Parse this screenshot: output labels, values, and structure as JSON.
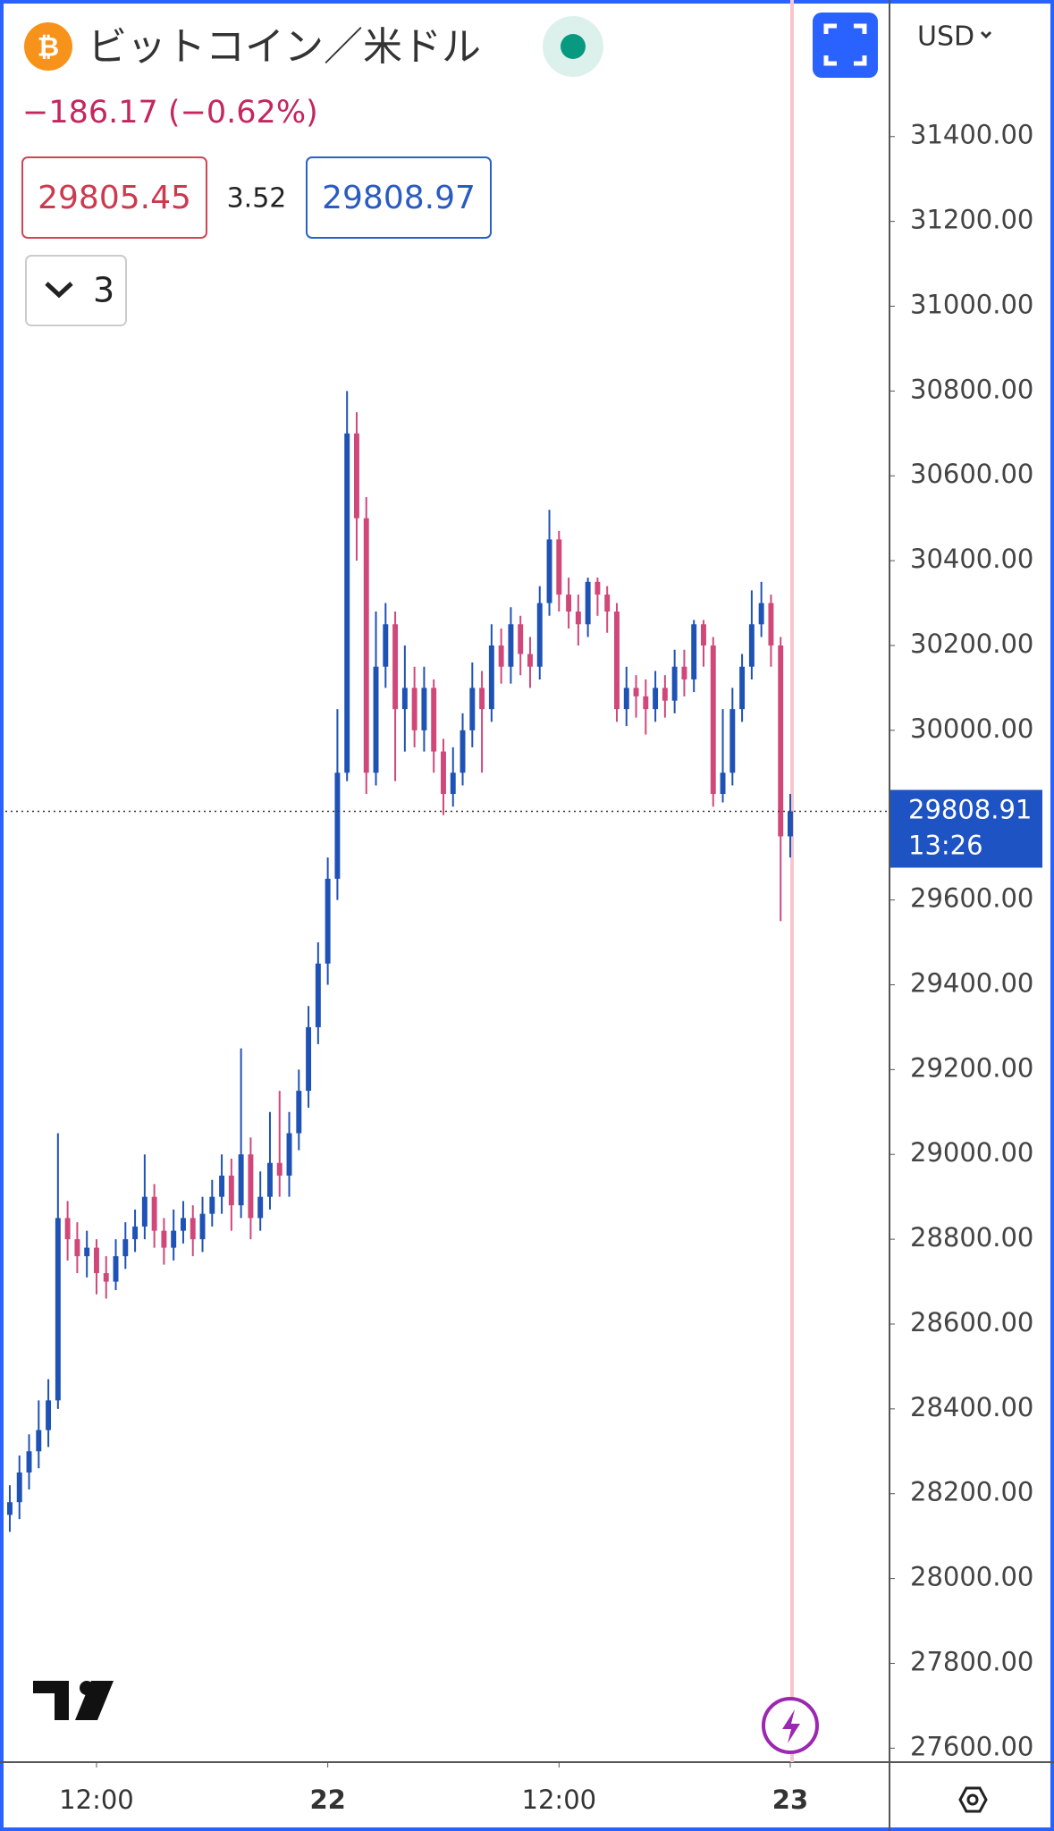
{
  "header": {
    "title": "ビットコイン／米ドル",
    "change": "−186.17 (−0.62%)",
    "bid": 29805.45,
    "spread": 3.52,
    "ask": 29808.97,
    "indicators": "3",
    "currency": "USD"
  },
  "chart_data": {
    "type": "candlestick",
    "x": [
      7.5,
      8,
      8.5,
      9,
      9.5,
      10,
      10.5,
      11,
      11.5,
      12,
      12.5,
      13,
      13.5,
      14,
      14.5,
      15,
      15.5,
      16,
      16.5,
      17,
      17.5,
      18,
      18.5,
      19,
      19.5,
      20,
      20.5,
      21,
      21.5,
      22,
      22.5,
      23,
      23.5,
      24,
      24.5,
      25,
      25.5,
      26,
      26.5,
      27,
      27.5,
      28,
      28.5,
      29,
      29.5,
      30,
      30.5,
      31,
      31.5,
      32,
      32.5,
      33,
      33.5,
      34,
      34.5,
      35,
      35.5,
      36,
      36.5,
      37,
      37.5,
      38,
      38.5,
      39,
      39.5,
      40,
      40.5,
      41,
      41.5,
      42,
      42.5,
      43,
      43.5,
      44,
      44.5,
      45,
      45.5,
      46,
      46.5,
      47,
      47.5,
      48
    ],
    "open": [
      28150,
      28180,
      28250,
      28300,
      28350,
      28420,
      28850,
      28800,
      28760,
      28780,
      28720,
      28700,
      28760,
      28800,
      28830,
      28900,
      28820,
      28780,
      28820,
      28850,
      28800,
      28860,
      28900,
      28950,
      28880,
      29000,
      28850,
      28900,
      28980,
      28950,
      29050,
      29150,
      29300,
      29450,
      29650,
      29900,
      30700,
      30500,
      29900,
      30150,
      30250,
      30050,
      30100,
      30000,
      30100,
      29950,
      29850,
      29900,
      30000,
      30100,
      30050,
      30200,
      30150,
      30250,
      30180,
      30150,
      30300,
      30450,
      30320,
      30280,
      30250,
      30350,
      30320,
      30280,
      30050,
      30100,
      30080,
      30050,
      30100,
      30070,
      30150,
      30120,
      30250,
      30200,
      29850,
      29900,
      30050,
      30150,
      30250,
      30300,
      30200,
      29750
    ],
    "high": [
      28220,
      28290,
      28340,
      28420,
      28470,
      29050,
      28890,
      28840,
      28820,
      28800,
      28760,
      28800,
      28840,
      28870,
      29000,
      28930,
      28850,
      28870,
      28890,
      28880,
      28900,
      28940,
      29000,
      28990,
      29250,
      29040,
      28960,
      29100,
      29150,
      29100,
      29200,
      29350,
      29500,
      29700,
      30050,
      30800,
      30750,
      30550,
      30280,
      30300,
      30280,
      30200,
      30150,
      30150,
      30120,
      29980,
      29960,
      30040,
      30160,
      30140,
      30250,
      30240,
      30290,
      30270,
      30220,
      30340,
      30520,
      30470,
      30360,
      30320,
      30360,
      30360,
      30340,
      30300,
      30150,
      30130,
      30120,
      30140,
      30130,
      30190,
      30190,
      30260,
      30260,
      30220,
      30050,
      30100,
      30180,
      30330,
      30350,
      30320,
      30220,
      29850
    ],
    "low": [
      28110,
      28140,
      28210,
      28260,
      28310,
      28400,
      28750,
      28720,
      28710,
      28670,
      28660,
      28680,
      28730,
      28770,
      28800,
      28780,
      28740,
      28750,
      28790,
      28760,
      28770,
      28830,
      28860,
      28820,
      28850,
      28800,
      28820,
      28870,
      28900,
      28900,
      29010,
      29110,
      29260,
      29400,
      29600,
      29880,
      30400,
      29850,
      29870,
      30100,
      29880,
      29950,
      29960,
      29950,
      29900,
      29800,
      29820,
      29870,
      29960,
      29900,
      30020,
      30110,
      30110,
      30130,
      30100,
      30120,
      30270,
      30280,
      30240,
      30200,
      30220,
      30270,
      30230,
      30020,
      30010,
      30030,
      29990,
      30020,
      30030,
      30040,
      30080,
      30090,
      30150,
      29820,
      29830,
      29870,
      30020,
      30120,
      30220,
      30150,
      29550,
      29700
    ],
    "close": [
      28180,
      28250,
      28300,
      28350,
      28420,
      28850,
      28800,
      28760,
      28780,
      28720,
      28700,
      28760,
      28800,
      28830,
      28900,
      28820,
      28780,
      28820,
      28850,
      28800,
      28860,
      28900,
      28950,
      28880,
      29000,
      28850,
      28900,
      28980,
      28950,
      29050,
      29150,
      29300,
      29450,
      29650,
      29900,
      30700,
      30500,
      29900,
      30150,
      30250,
      30050,
      30100,
      30000,
      30100,
      29950,
      29850,
      29900,
      30000,
      30100,
      30050,
      30200,
      30150,
      30250,
      30180,
      30150,
      30300,
      30450,
      30320,
      30280,
      30250,
      30350,
      30320,
      30280,
      30050,
      30100,
      30080,
      30050,
      30100,
      30070,
      30150,
      30120,
      30250,
      30200,
      29850,
      29900,
      30050,
      30150,
      30250,
      30300,
      30200,
      29750,
      29809
    ],
    "up_color": "#1f52b5",
    "down_color": "#d0487a",
    "xlim": [
      7.27,
      53.15
    ],
    "ylim": [
      27567,
      31722
    ],
    "xticks": [
      {
        "value": 12,
        "label": "12:00"
      },
      {
        "value": 24,
        "label": "22"
      },
      {
        "value": 36,
        "label": "12:00"
      },
      {
        "value": 48,
        "label": "23"
      }
    ],
    "yticks": [
      {
        "value": 27600,
        "label": "27600.00"
      },
      {
        "value": 27800,
        "label": "27800.00"
      },
      {
        "value": 28000,
        "label": "28000.00"
      },
      {
        "value": 28200,
        "label": "28200.00"
      },
      {
        "value": 28400,
        "label": "28400.00"
      },
      {
        "value": 28600,
        "label": "28600.00"
      },
      {
        "value": 28800,
        "label": "28800.00"
      },
      {
        "value": 29000,
        "label": "29000.00"
      },
      {
        "value": 29200,
        "label": "29200.00"
      },
      {
        "value": 29400,
        "label": "29400.00"
      },
      {
        "value": 29600,
        "label": "29600.00"
      },
      {
        "value": 30000,
        "label": "30000.00"
      },
      {
        "value": 30200,
        "label": "30200.00"
      },
      {
        "value": 30400,
        "label": "30400.00"
      },
      {
        "value": 30600,
        "label": "30600.00"
      },
      {
        "value": 30800,
        "label": "30800.00"
      },
      {
        "value": 31000,
        "label": "31000.00"
      },
      {
        "value": 31200,
        "label": "31200.00"
      },
      {
        "value": 31400,
        "label": "31400.00"
      }
    ],
    "last_price": 29808.91,
    "countdown": "13:26"
  }
}
